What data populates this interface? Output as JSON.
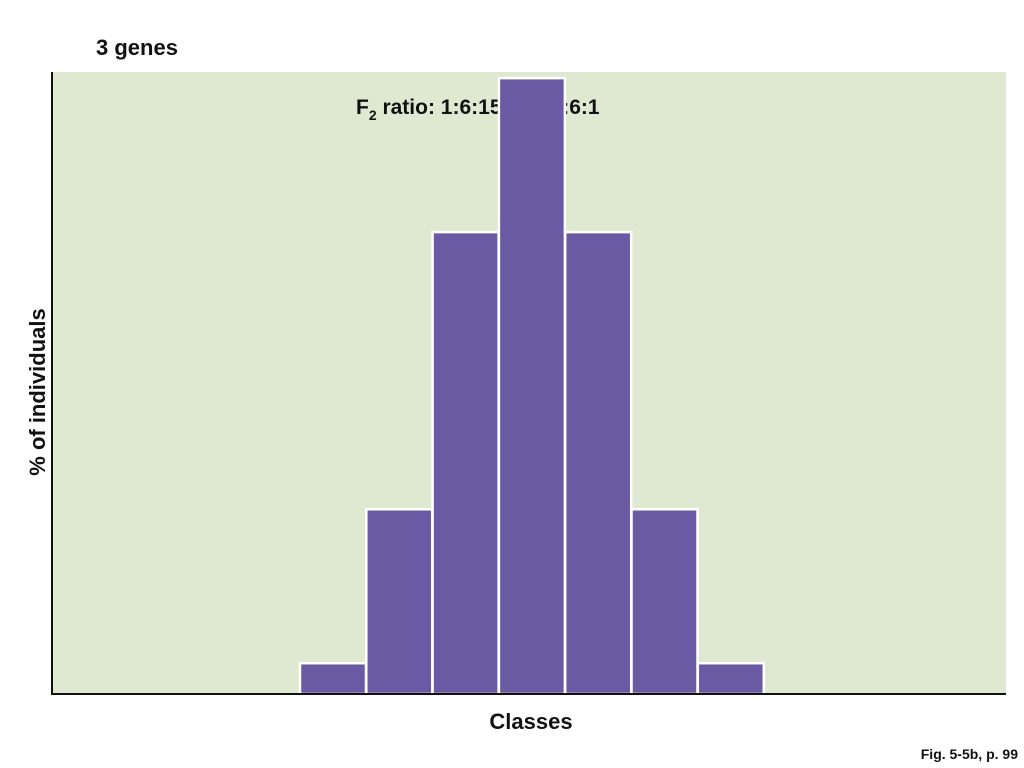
{
  "chart_data": {
    "type": "bar",
    "title": "3 genes",
    "annotation": {
      "prefix": "F",
      "subscript": "2",
      "text": " ratio: 1:6:15:20:15:6:1"
    },
    "xlabel": "Classes",
    "ylabel": "% of individuals",
    "values": [
      1,
      6,
      15,
      20,
      15,
      6,
      1
    ],
    "ylim": [
      0,
      20.2
    ],
    "plot_background": "#dfe9d1",
    "bar_color": "#6a59a3",
    "bar_edge_color": "#ffffff",
    "grid": false,
    "legend": "none"
  },
  "caption": "Fig. 5-5b, p. 99"
}
